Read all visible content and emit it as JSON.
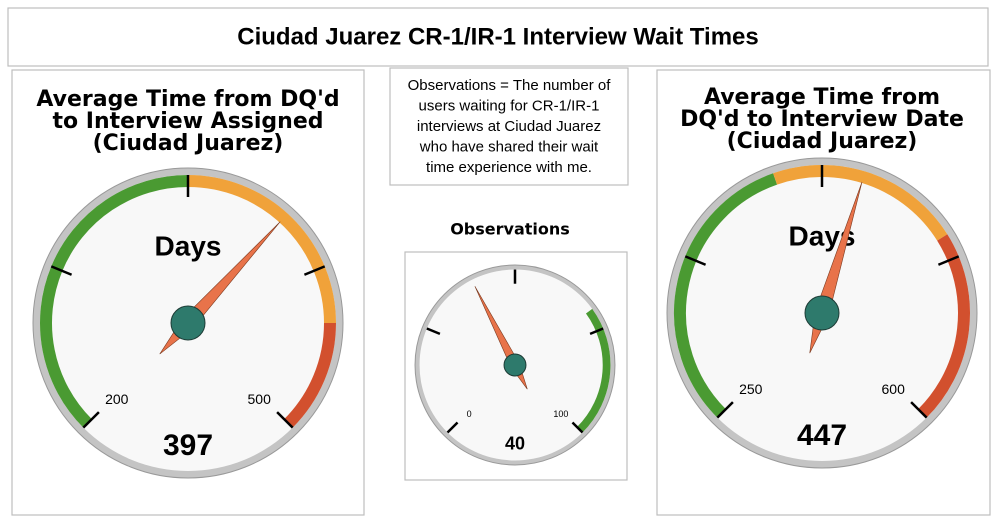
{
  "header": {
    "title": "Ciudad Juarez CR-1/IR-1 Interview Wait Times"
  },
  "note": {
    "lines": [
      "Observations = The number of",
      "users waiting for CR-1/IR-1",
      "interviews at Ciudad Juarez",
      "who have shared their wait",
      "time experience with me."
    ]
  },
  "chart_data": [
    {
      "type": "gauge",
      "title": [
        "Average Time from DQ'd",
        "to Interview Assigned",
        "(Ciudad Juarez)"
      ],
      "unit": "Days",
      "lim": [
        200,
        500
      ],
      "ticks": [
        200,
        275,
        350,
        425,
        500
      ],
      "value": 397,
      "needle_color": "#e8734a",
      "hub_color": "#2e7a6c",
      "bands": [
        {
          "from": 200,
          "to": 350,
          "color": "#4a9a32"
        },
        {
          "from": 350,
          "to": 450,
          "color": "#f0a23a"
        },
        {
          "from": 450,
          "to": 500,
          "color": "#d2502e"
        }
      ]
    },
    {
      "type": "gauge",
      "title": [
        "Observations"
      ],
      "lim": [
        0,
        100
      ],
      "ticks": [
        0,
        25,
        50,
        75,
        100
      ],
      "value": 40,
      "needle_color": "#e8734a",
      "hub_color": "#2e7a6c",
      "bands": [
        {
          "from": 70,
          "to": 100,
          "color": "#4a9a32"
        }
      ]
    },
    {
      "type": "gauge",
      "title": [
        "Average Time from",
        "DQ'd to Interview Date",
        "(Ciudad Juarez)"
      ],
      "unit": "Days",
      "lim": [
        250,
        600
      ],
      "ticks": [
        250,
        337.5,
        425,
        512.5,
        600
      ],
      "value": 447,
      "needle_color": "#e8734a",
      "hub_color": "#2e7a6c",
      "bands": [
        {
          "from": 250,
          "to": 400,
          "color": "#4a9a32"
        },
        {
          "from": 400,
          "to": 500,
          "color": "#f0a23a"
        },
        {
          "from": 500,
          "to": 600,
          "color": "#d2502e"
        }
      ]
    }
  ]
}
